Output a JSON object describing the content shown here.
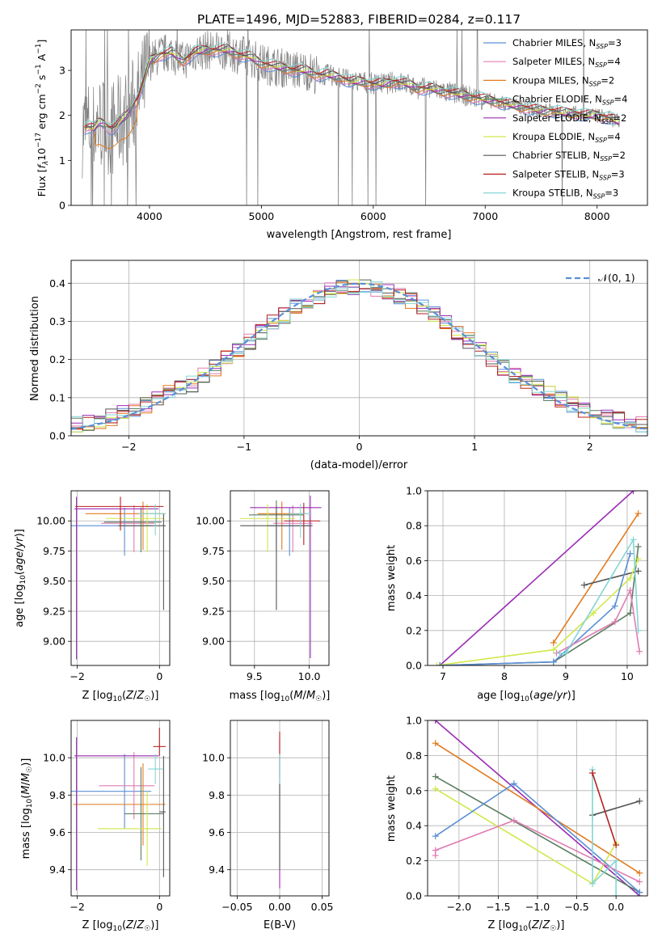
{
  "colors": {
    "chabrier_miles": "#5a8fd6",
    "salpeter_miles": "#e07cb4",
    "kroupa_miles": "#e17a1f",
    "chabrier_elodie": "#5b7e61",
    "salpeter_elodie": "#9b2cb4",
    "kroupa_elodie": "#cfe84a",
    "chabrier_stelib": "#555555",
    "salpeter_stelib": "#b82020",
    "kroupa_stelib": "#84d5d5",
    "data_gray": "#808080",
    "normal_dashed": "#5a8fd6"
  },
  "chart_data": [
    {
      "id": "spectrum",
      "type": "line",
      "title": "PLATE=1496, MJD=52883, FIBERID=0284, z=0.117",
      "xlabel": "wavelength [Angstrom, rest frame]",
      "ylabel": "Flux [f_λ 10^-17 erg cm^-2 s^-1 A^-1]",
      "xlim": [
        3300,
        8450
      ],
      "ylim": [
        0,
        3.9
      ],
      "xticks": [
        4000,
        5000,
        6000,
        7000,
        8000
      ],
      "yticks": [
        0,
        1,
        2,
        3
      ],
      "legend_position": "right",
      "spectrum_model": {
        "x": [
          3400,
          3450,
          3500,
          3550,
          3600,
          3650,
          3700,
          3750,
          3800,
          3850,
          3900,
          3950,
          4000,
          4100,
          4200,
          4300,
          4400,
          4500,
          4600,
          4700,
          4800,
          4900,
          5000,
          5100,
          5200,
          5300,
          5400,
          5500,
          5600,
          5700,
          5800,
          5900,
          6000,
          6100,
          6200,
          6300,
          6400,
          6500,
          6600,
          6700,
          6800,
          6900,
          7000,
          7100,
          7200,
          7300,
          7400,
          7500,
          7600,
          7700,
          7800,
          7900,
          8000,
          8100,
          8200
        ],
        "y": [
          1.7,
          1.75,
          1.7,
          1.85,
          1.8,
          1.7,
          1.75,
          1.9,
          2.0,
          2.2,
          2.4,
          2.75,
          3.2,
          3.35,
          3.4,
          3.2,
          3.4,
          3.45,
          3.45,
          3.45,
          3.35,
          3.3,
          3.15,
          3.1,
          3.05,
          3.0,
          3.0,
          2.9,
          2.9,
          2.85,
          2.75,
          2.75,
          2.7,
          2.7,
          2.75,
          2.7,
          2.6,
          2.6,
          2.55,
          2.5,
          2.45,
          2.4,
          2.35,
          2.3,
          2.25,
          2.2,
          2.15,
          2.1,
          2.1,
          2.05,
          2.05,
          2.0,
          2.0,
          1.95,
          1.85
        ]
      },
      "series": [
        {
          "name": "Chabrier MILES",
          "nssp": "3",
          "color_key": "chabrier_miles"
        },
        {
          "name": "Salpeter MILES",
          "nssp": "4",
          "color_key": "salpeter_miles"
        },
        {
          "name": "Kroupa MILES",
          "nssp": "2",
          "color_key": "kroupa_miles"
        },
        {
          "name": "Chabrier ELODIE",
          "nssp": "4",
          "color_key": "chabrier_elodie"
        },
        {
          "name": "Salpeter ELODIE",
          "nssp": "2",
          "color_key": "salpeter_elodie"
        },
        {
          "name": "Kroupa ELODIE",
          "nssp": "4",
          "color_key": "kroupa_elodie"
        },
        {
          "name": "Chabrier STELIB",
          "nssp": "2",
          "color_key": "chabrier_stelib"
        },
        {
          "name": "Salpeter STELIB",
          "nssp": "3",
          "color_key": "salpeter_stelib"
        },
        {
          "name": "Kroupa STELIB",
          "nssp": "3",
          "color_key": "kroupa_stelib"
        }
      ]
    },
    {
      "id": "residuals",
      "type": "histogram",
      "xlabel": "(data-model)/error",
      "ylabel": "Normed distribution",
      "xlim": [
        -2.5,
        2.5
      ],
      "ylim": [
        0,
        0.46
      ],
      "xticks": [
        -2,
        -1,
        0,
        1,
        2
      ],
      "yticks": [
        0.0,
        0.1,
        0.2,
        0.3,
        0.4
      ],
      "grid": true,
      "legend_label": "𝒩(0, 1)",
      "legend_position": "top-right",
      "bin_width": 0.1
    },
    {
      "id": "age_vs_z",
      "type": "errorbar",
      "xlabel": "Z [log₁₀(Z/Z☉)]",
      "ylabel": "age  [log₁₀(age/yr)]",
      "xlim": [
        -2.15,
        0.25
      ],
      "ylim": [
        8.8,
        10.25
      ],
      "xticks": [
        -2,
        0
      ],
      "yticks": [
        9.0,
        9.25,
        9.5,
        9.75,
        10.0
      ],
      "grid": true,
      "points": [
        {
          "k": "chabrier_miles",
          "x": -0.85,
          "y": 9.96,
          "xlo": 1.3,
          "xhi": 0.65,
          "ylo": 0.25,
          "yhi": 0.15
        },
        {
          "k": "salpeter_miles",
          "x": -0.62,
          "y": 9.98,
          "xlo": 0.8,
          "xhi": 0.5,
          "ylo": 0.24,
          "yhi": 0.15
        },
        {
          "k": "kroupa_miles",
          "x": -0.4,
          "y": 10.06,
          "xlo": 1.4,
          "xhi": 0.55,
          "ylo": 0.3,
          "yhi": 0.1
        },
        {
          "k": "chabrier_elodie",
          "x": -0.45,
          "y": 9.99,
          "xlo": 0.9,
          "xhi": 0.5,
          "ylo": 0.25,
          "yhi": 0.12
        },
        {
          "k": "salpeter_elodie",
          "x": -2.02,
          "y": 10.1,
          "xlo": 0.05,
          "xhi": 2.0,
          "ylo": 1.25,
          "yhi": 0.1
        },
        {
          "k": "kroupa_elodie",
          "x": -0.3,
          "y": 10.02,
          "xlo": 1.0,
          "xhi": 0.4,
          "ylo": 0.28,
          "yhi": 0.12
        },
        {
          "k": "chabrier_stelib",
          "x": 0.1,
          "y": 9.96,
          "xlo": 1.1,
          "xhi": 0.05,
          "ylo": 0.7,
          "yhi": 0.1
        },
        {
          "k": "salpeter_stelib",
          "x": -0.95,
          "y": 10.12,
          "xlo": 1.1,
          "xhi": 1.05,
          "ylo": 0.2,
          "yhi": 0.08
        },
        {
          "k": "kroupa_stelib",
          "x": -0.1,
          "y": 10.06,
          "xlo": 0.4,
          "xhi": 0.25,
          "ylo": 0.18,
          "yhi": 0.08
        }
      ]
    },
    {
      "id": "age_vs_mass",
      "type": "errorbar",
      "xlabel": "mass [log₁₀(M/M☉)]",
      "ylabel": "",
      "xlim": [
        9.28,
        10.18
      ],
      "ylim": [
        8.8,
        10.25
      ],
      "xticks": [
        9.5,
        10.0
      ],
      "yticks": [
        9.0,
        9.25,
        9.5,
        9.75,
        10.0
      ],
      "grid": true,
      "points": [
        {
          "k": "chabrier_miles",
          "x": 9.82,
          "y": 9.96,
          "xlo": 0.2,
          "xhi": 0.2,
          "ylo": 0.25,
          "yhi": 0.15
        },
        {
          "k": "salpeter_miles",
          "x": 9.85,
          "y": 9.98,
          "xlo": 0.18,
          "xhi": 0.18,
          "ylo": 0.24,
          "yhi": 0.15
        },
        {
          "k": "kroupa_miles",
          "x": 9.75,
          "y": 10.06,
          "xlo": 0.22,
          "xhi": 0.22,
          "ylo": 0.3,
          "yhi": 0.1
        },
        {
          "k": "chabrier_elodie",
          "x": 9.7,
          "y": 10.05,
          "xlo": 0.25,
          "xhi": 0.25,
          "ylo": 0.3,
          "yhi": 0.12
        },
        {
          "k": "salpeter_elodie",
          "x": 10.01,
          "y": 10.11,
          "xlo": 0.55,
          "xhi": 0.1,
          "ylo": 1.25,
          "yhi": 0.1
        },
        {
          "k": "kroupa_elodie",
          "x": 9.62,
          "y": 10.02,
          "xlo": 0.25,
          "xhi": 0.25,
          "ylo": 0.28,
          "yhi": 0.12
        },
        {
          "k": "chabrier_stelib",
          "x": 9.7,
          "y": 9.96,
          "xlo": 0.33,
          "xhi": 0.33,
          "ylo": 0.7,
          "yhi": 0.16
        },
        {
          "k": "salpeter_stelib",
          "x": 9.95,
          "y": 10.0,
          "xlo": 0.18,
          "xhi": 0.15,
          "ylo": 0.2,
          "yhi": 0.15
        },
        {
          "k": "kroupa_stelib",
          "x": 9.92,
          "y": 10.06,
          "xlo": 0.1,
          "xhi": 0.1,
          "ylo": 0.2,
          "yhi": 0.08
        }
      ]
    },
    {
      "id": "weight_vs_age",
      "type": "line",
      "xlabel": "age  [log₁₀(age/yr)]",
      "ylabel": "mass weight",
      "xlim": [
        6.75,
        10.33
      ],
      "ylim": [
        0,
        1
      ],
      "xticks": [
        7,
        8,
        9,
        10
      ],
      "yticks": [
        0.0,
        0.2,
        0.4,
        0.6,
        0.8,
        1.0
      ],
      "grid": true,
      "series": [
        {
          "k": "salpeter_elodie",
          "x": [
            6.95,
            10.1
          ],
          "y": [
            0.0,
            1.0
          ]
        },
        {
          "k": "kroupa_miles",
          "x": [
            8.8,
            10.18
          ],
          "y": [
            0.13,
            0.87
          ]
        },
        {
          "k": "chabrier_stelib",
          "x": [
            9.3,
            10.18
          ],
          "y": [
            0.46,
            0.54
          ]
        },
        {
          "k": "chabrier_elodie",
          "x": [
            6.95,
            8.8,
            10.05,
            10.18
          ],
          "y": [
            0.0,
            0.02,
            0.3,
            0.68
          ]
        },
        {
          "k": "kroupa_elodie",
          "x": [
            6.9,
            8.8,
            9.45,
            10.05,
            10.18
          ],
          "y": [
            0.0,
            0.09,
            0.3,
            0.5,
            0.61
          ]
        },
        {
          "k": "chabrier_miles",
          "x": [
            6.95,
            8.8,
            9.8,
            10.05
          ],
          "y": [
            0.0,
            0.02,
            0.34,
            0.64
          ]
        },
        {
          "k": "salpeter_miles",
          "x": [
            8.85,
            9.8,
            10.05,
            10.2
          ],
          "y": [
            0.07,
            0.25,
            0.43,
            0.08
          ]
        },
        {
          "k": "kroupa_stelib",
          "x": [
            8.9,
            9.0,
            10.1,
            10.18
          ],
          "y": [
            0.07,
            0.07,
            0.72,
            0.2
          ]
        }
      ]
    },
    {
      "id": "mass_vs_z",
      "type": "errorbar",
      "xlabel": "Z [log₁₀(Z/Z☉)]",
      "ylabel": "mass [log₁₀(M/M☉)]",
      "xlim": [
        -2.15,
        0.25
      ],
      "ylim": [
        9.26,
        10.2
      ],
      "xticks": [
        -2,
        0
      ],
      "yticks": [
        9.4,
        9.6,
        9.8,
        10.0
      ],
      "grid": true,
      "points": [
        {
          "k": "chabrier_miles",
          "x": -0.85,
          "y": 9.82,
          "xlo": 1.3,
          "xhi": 0.65,
          "ylo": 0.2,
          "yhi": 0.2
        },
        {
          "k": "salpeter_miles",
          "x": -0.62,
          "y": 9.85,
          "xlo": 0.85,
          "xhi": 0.5,
          "ylo": 0.18,
          "yhi": 0.18
        },
        {
          "k": "kroupa_miles",
          "x": -0.4,
          "y": 9.75,
          "xlo": 1.7,
          "xhi": 0.55,
          "ylo": 0.22,
          "yhi": 0.22
        },
        {
          "k": "chabrier_elodie",
          "x": -0.45,
          "y": 9.7,
          "xlo": 0.4,
          "xhi": 0.55,
          "ylo": 0.25,
          "yhi": 0.25
        },
        {
          "k": "salpeter_elodie",
          "x": -2.02,
          "y": 10.01,
          "xlo": 0.05,
          "xhi": 2.0,
          "ylo": 0.72,
          "yhi": 0.1
        },
        {
          "k": "kroupa_elodie",
          "x": -0.3,
          "y": 9.62,
          "xlo": 1.2,
          "xhi": 0.35,
          "ylo": 0.2,
          "yhi": 0.2
        },
        {
          "k": "chabrier_stelib",
          "x": 0.1,
          "y": 9.71,
          "xlo": 0.1,
          "xhi": 0.05,
          "ylo": 0.35,
          "yhi": 0.3
        },
        {
          "k": "salpeter_stelib",
          "x": 0.0,
          "y": 10.06,
          "xlo": 0.15,
          "xhi": 0.15,
          "ylo": 0.05,
          "yhi": 0.1
        },
        {
          "k": "kroupa_stelib",
          "x": -0.1,
          "y": 9.94,
          "xlo": 0.18,
          "xhi": 0.18,
          "ylo": 0.08,
          "yhi": 0.08
        }
      ]
    },
    {
      "id": "mass_vs_ebv",
      "type": "errorbar",
      "xlabel": "E(B-V)",
      "ylabel": "",
      "xlim": [
        -0.058,
        0.058
      ],
      "ylim": [
        9.26,
        10.2
      ],
      "xticks": [
        -0.05,
        0.0,
        0.05
      ],
      "yticks": [
        9.4,
        9.6,
        9.8,
        10.0
      ],
      "grid": true,
      "points": [
        {
          "k": "salpeter_elodie",
          "x": 0.0,
          "y": 9.9,
          "xlo": 0,
          "xhi": 0,
          "ylo": 0.6,
          "yhi": 0.2
        },
        {
          "k": "salpeter_stelib",
          "x": 0.0,
          "y": 10.0,
          "xlo": 0,
          "xhi": 0,
          "ylo": 0.1,
          "yhi": 0.14
        },
        {
          "k": "chabrier_stelib",
          "x": 0.0,
          "y": 9.7,
          "xlo": 0,
          "xhi": 0,
          "ylo": 0.3,
          "yhi": 0.3
        },
        {
          "k": "kroupa_stelib",
          "x": 0.0,
          "y": 9.94,
          "xlo": 0,
          "xhi": 0,
          "ylo": 0.08,
          "yhi": 0.08
        }
      ]
    },
    {
      "id": "weight_vs_z",
      "type": "line",
      "xlabel": "Z [log₁₀(Z/Z☉)]",
      "ylabel": "mass weight",
      "xlim": [
        -2.4,
        0.4
      ],
      "ylim": [
        0,
        1
      ],
      "xticks": [
        -2.0,
        -1.5,
        -1.0,
        -0.5,
        0.0
      ],
      "yticks": [
        0.0,
        0.2,
        0.4,
        0.6,
        0.8,
        1.0
      ],
      "grid": true,
      "series": [
        {
          "k": "salpeter_elodie",
          "x": [
            -2.3,
            0.3
          ],
          "y": [
            1.0,
            0.0
          ]
        },
        {
          "k": "kroupa_miles",
          "x": [
            -2.3,
            0.3
          ],
          "y": [
            0.87,
            0.13
          ]
        },
        {
          "k": "chabrier_elodie",
          "x": [
            -2.3,
            0.3
          ],
          "y": [
            0.68,
            0.02
          ]
        },
        {
          "k": "kroupa_elodie",
          "x": [
            -2.3,
            -0.3,
            0.0
          ],
          "y": [
            0.61,
            0.07,
            0.3
          ]
        },
        {
          "k": "chabrier_miles",
          "x": [
            -2.3,
            -1.3,
            0.3
          ],
          "y": [
            0.34,
            0.64,
            0.02
          ]
        },
        {
          "k": "salpeter_miles",
          "x": [
            -2.3,
            -2.3,
            -1.3,
            0.3
          ],
          "y": [
            0.23,
            0.26,
            0.43,
            0.08
          ]
        },
        {
          "k": "chabrier_stelib",
          "x": [
            -0.3,
            0.3
          ],
          "y": [
            0.46,
            0.54
          ]
        },
        {
          "k": "kroupa_stelib",
          "x": [
            -0.3,
            -0.3,
            0.0,
            0.0
          ],
          "y": [
            0.72,
            0.07,
            0.2,
            0.0
          ]
        },
        {
          "k": "salpeter_stelib",
          "x": [
            -0.3,
            0.0
          ],
          "y": [
            0.7,
            0.29
          ]
        }
      ]
    }
  ]
}
